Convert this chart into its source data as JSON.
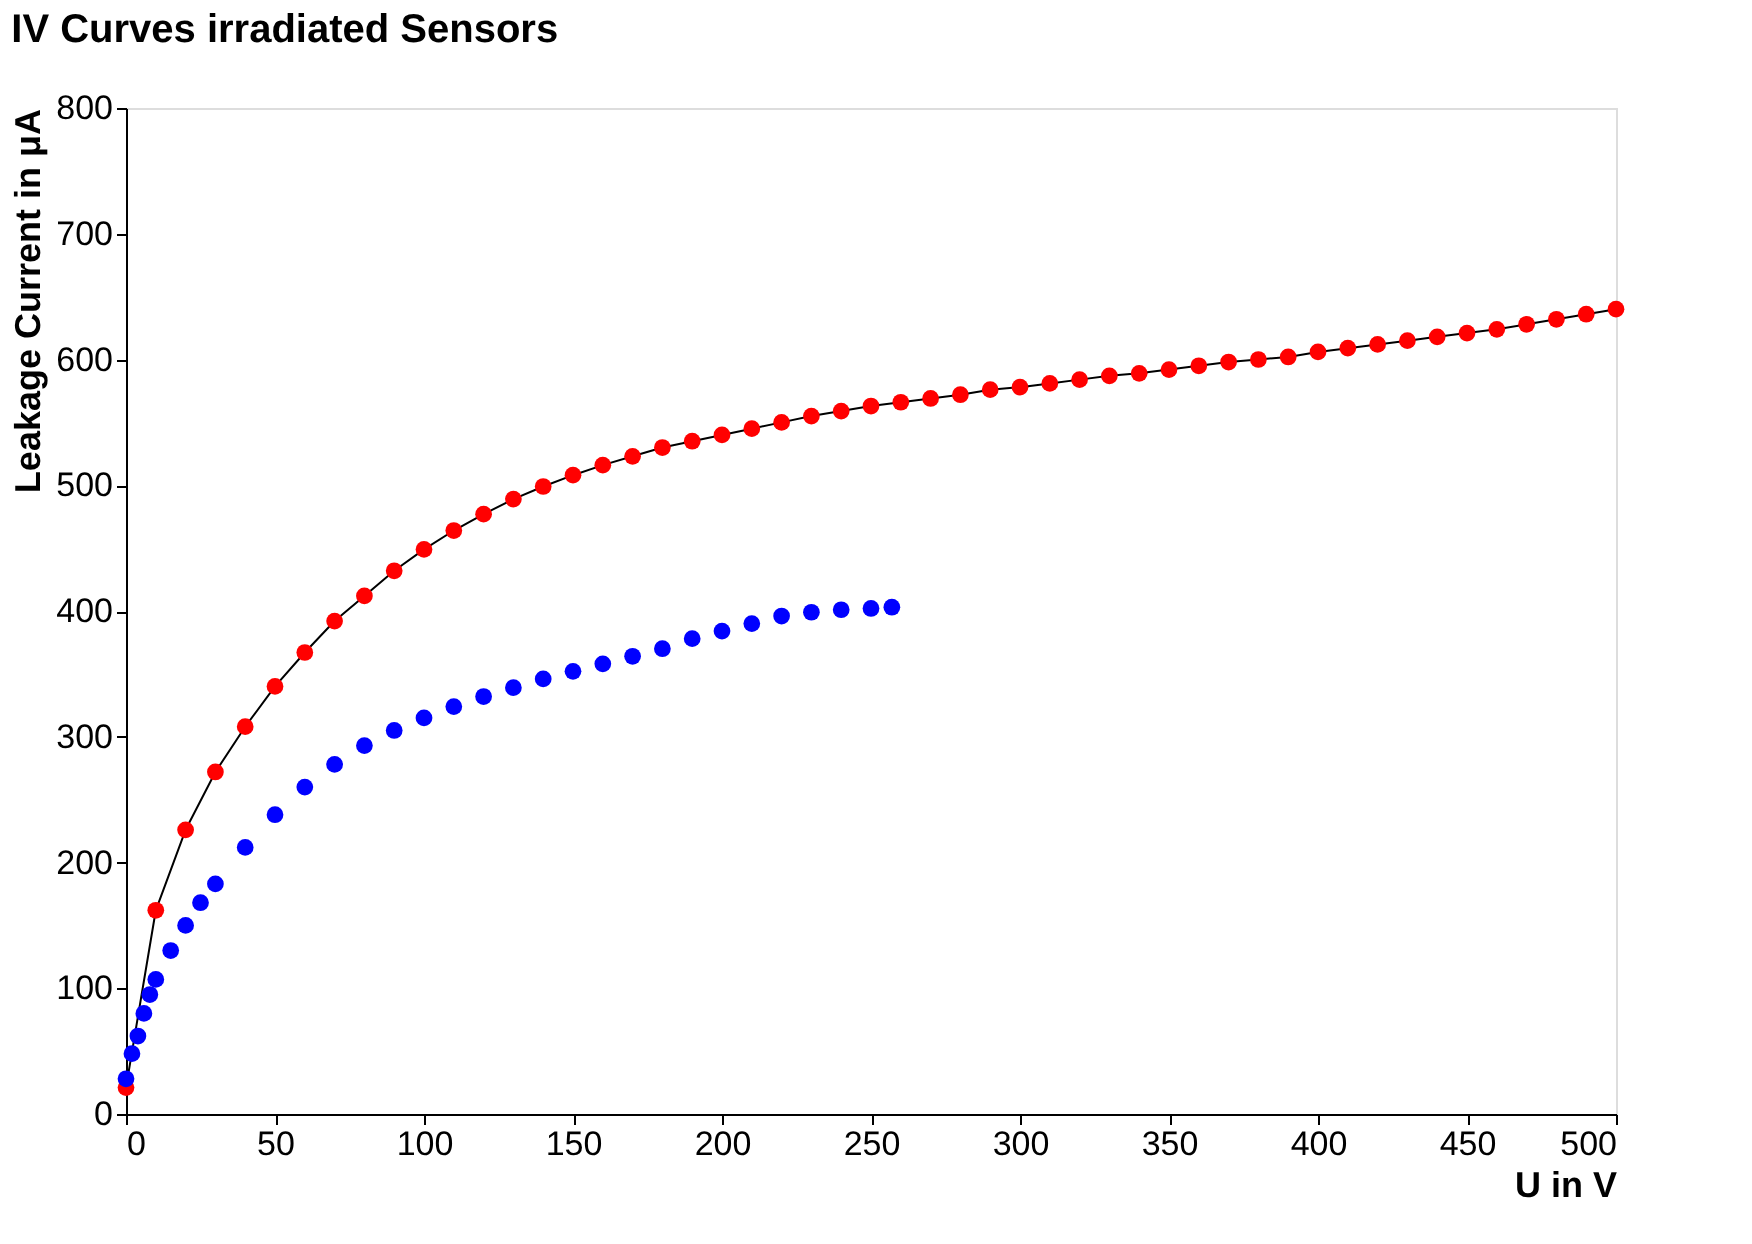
{
  "chart_data": {
    "type": "line",
    "title": "IV Curves irradiated Sensors",
    "xlabel": "U in V",
    "ylabel": "Leakage Current in μA",
    "xlim": [
      0,
      500
    ],
    "xticks": [
      0,
      50,
      100,
      150,
      200,
      250,
      300,
      350,
      400,
      450,
      500
    ],
    "ylim": [
      0,
      800
    ],
    "yticks": [
      0,
      100,
      200,
      300,
      400,
      500,
      600,
      700,
      800
    ],
    "grid": false,
    "marker": "circle",
    "series": [
      {
        "color": "#ff0000",
        "x": [
          0,
          10,
          20,
          30,
          40,
          50,
          60,
          70,
          80,
          90,
          100,
          110,
          120,
          130,
          140,
          150,
          160,
          170,
          180,
          190,
          200,
          210,
          220,
          230,
          240,
          250,
          260,
          270,
          280,
          290,
          300,
          310,
          320,
          330,
          340,
          350,
          360,
          370,
          380,
          390,
          400,
          410,
          420,
          430,
          440,
          450,
          460,
          470,
          480,
          490,
          500
        ],
        "values": [
          21,
          162,
          226,
          272,
          308,
          340,
          367,
          392,
          412,
          432,
          449,
          464,
          477,
          489,
          499,
          508,
          516,
          523,
          530,
          535,
          540,
          545,
          550,
          555,
          559,
          563,
          566,
          569,
          572,
          576,
          578,
          581,
          584,
          587,
          589,
          592,
          595,
          598,
          600,
          602,
          606,
          609,
          612,
          615,
          618,
          621,
          624,
          628,
          632,
          636,
          640
        ]
      },
      {
        "color": "#0000ff",
        "type": "scatter",
        "x": [
          0,
          2,
          4,
          6,
          8,
          10,
          15,
          20,
          25,
          30,
          40,
          50,
          60,
          70,
          80,
          90,
          100,
          110,
          120,
          130,
          140,
          150,
          160,
          170,
          180,
          190,
          200,
          210,
          220,
          230,
          240,
          250,
          257
        ],
        "values": [
          28,
          48,
          62,
          80,
          95,
          107,
          130,
          150,
          168,
          183,
          212,
          238,
          260,
          278,
          293,
          305,
          315,
          324,
          332,
          339,
          346,
          352,
          358,
          364,
          370,
          378,
          384,
          390,
          396,
          399,
          401,
          402,
          403
        ]
      }
    ]
  }
}
